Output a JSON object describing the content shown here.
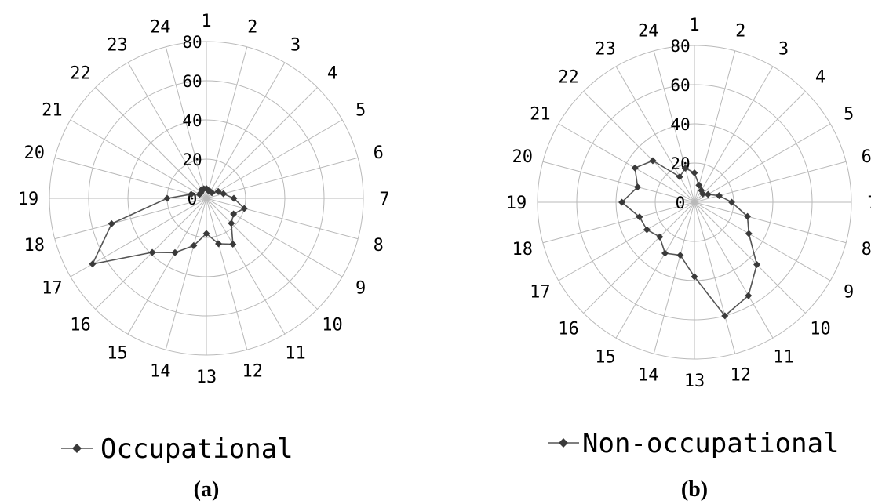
{
  "chart_data": [
    {
      "type": "radar",
      "panel": "(a)",
      "categories": [
        "1",
        "2",
        "3",
        "4",
        "5",
        "6",
        "7",
        "8",
        "9",
        "10",
        "11",
        "12",
        "13",
        "14",
        "15",
        "16",
        "17",
        "18",
        "19",
        "20",
        "21",
        "22",
        "23",
        "24"
      ],
      "radial_ticks": [
        "0",
        "20",
        "40",
        "60",
        "80"
      ],
      "rlim": [
        0,
        80
      ],
      "grid": true,
      "legend_position": "bottom",
      "series": [
        {
          "name": "Occupational",
          "values": [
            5,
            4,
            4,
            4,
            7,
            9,
            14,
            20,
            16,
            18,
            27,
            24,
            18,
            25,
            32,
            39,
            67,
            50,
            20,
            8,
            4,
            4,
            5,
            5
          ]
        }
      ]
    },
    {
      "type": "radar",
      "panel": "(b)",
      "categories": [
        "1",
        "2",
        "3",
        "4",
        "5",
        "6",
        "7",
        "8",
        "9",
        "10",
        "11",
        "12",
        "13",
        "14",
        "15",
        "16",
        "17",
        "18",
        "19",
        "20",
        "21",
        "22",
        "23",
        "24"
      ],
      "radial_ticks": [
        "0",
        "20",
        "40",
        "60",
        "80"
      ],
      "rlim": [
        0,
        80
      ],
      "grid": true,
      "legend_position": "bottom",
      "series": [
        {
          "name": "Non-occupational",
          "values": [
            15,
            9,
            7,
            6,
            8,
            13,
            19,
            28,
            32,
            45,
            55,
            60,
            38,
            28,
            30,
            25,
            28,
            29,
            37,
            30,
            35,
            30,
            15,
            18
          ]
        }
      ]
    }
  ]
}
